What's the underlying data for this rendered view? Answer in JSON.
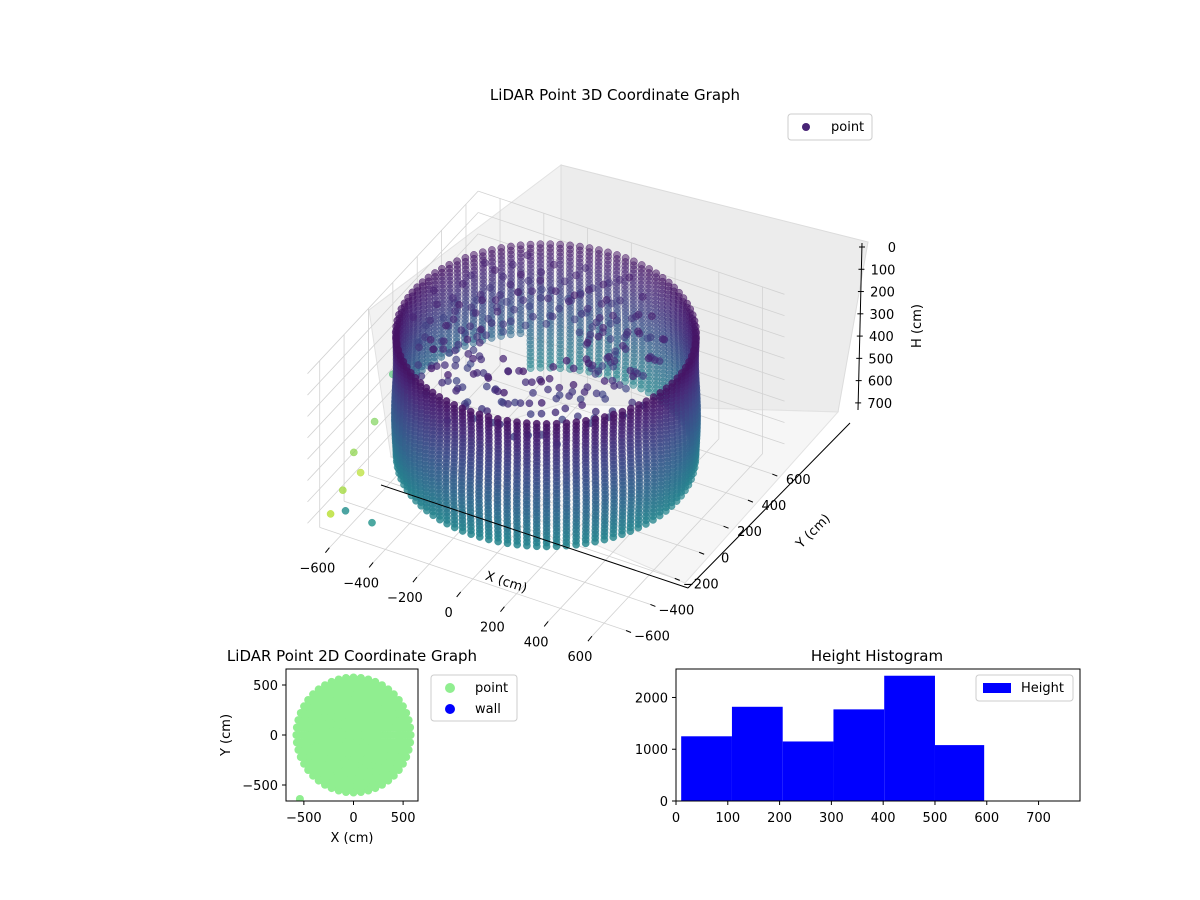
{
  "figure": {
    "background": "#ffffff"
  },
  "chart_data": [
    {
      "type": "scatter",
      "projection": "3d",
      "title": "LiDAR Point 3D Coordinate Graph",
      "xlabel": "X (cm)",
      "ylabel": "Y (cm)",
      "zlabel": "H (cm)",
      "xlim": [
        -700,
        700
      ],
      "ylim": [
        -700,
        700
      ],
      "zlim": [
        0,
        780
      ],
      "z_inverted": true,
      "xticks": [
        -600,
        -400,
        -200,
        0,
        200,
        400,
        600
      ],
      "yticks": [
        -600,
        -400,
        -200,
        0,
        200,
        400,
        600
      ],
      "zticks": [
        0,
        100,
        200,
        300,
        400,
        500,
        600,
        700
      ],
      "colormap": "viridis",
      "grid": true,
      "legend": {
        "entries": [
          "point"
        ],
        "placement": "upper right"
      },
      "series": [
        {
          "name": "point",
          "marker_color": "#482475",
          "description_of_shape": "cylindrical wall of points, radius approx 600 cm, heights 0-600 cm, a few outlier points near x=-650",
          "samples": [
            {
              "x": 600,
              "y": 0,
              "h": 0
            },
            {
              "x": 600,
              "y": 0,
              "h": 600
            },
            {
              "x": 0,
              "y": 600,
              "h": 0
            },
            {
              "x": 0,
              "y": 600,
              "h": 600
            },
            {
              "x": -600,
              "y": 0,
              "h": 0
            },
            {
              "x": -600,
              "y": 0,
              "h": 600
            },
            {
              "x": 0,
              "y": -600,
              "h": 0
            },
            {
              "x": 0,
              "y": -600,
              "h": 600
            },
            {
              "x": -650,
              "y": -500,
              "h": 650
            },
            {
              "x": -680,
              "y": -300,
              "h": 700
            }
          ]
        }
      ]
    },
    {
      "type": "scatter",
      "title": "LiDAR Point 2D Coordinate Graph",
      "xlabel": "X (cm)",
      "ylabel": "Y (cm)",
      "xlim": [
        -680,
        650
      ],
      "ylim": [
        -660,
        660
      ],
      "xticks": [
        -500,
        0,
        500
      ],
      "yticks": [
        -500,
        0,
        500
      ],
      "legend": {
        "entries": [
          "point",
          "wall"
        ],
        "placement": "outside right"
      },
      "series": [
        {
          "name": "point",
          "color": "#90ee90",
          "shape": "filled disk, center (0,0), radius approx 600"
        },
        {
          "name": "wall",
          "color": "#0000ff",
          "points": []
        }
      ]
    },
    {
      "type": "bar",
      "title": "Height Histogram",
      "xlabel": "",
      "ylabel": "",
      "xlim": [
        0,
        780
      ],
      "ylim": [
        0,
        2550
      ],
      "xticks": [
        0,
        100,
        200,
        300,
        400,
        500,
        600,
        700
      ],
      "yticks": [
        0,
        1000,
        2000
      ],
      "legend": {
        "entries": [
          "Height"
        ],
        "placement": "upper right"
      },
      "series": [
        {
          "name": "Height",
          "color": "#0000ff",
          "bins": [
            {
              "start": 10,
              "end": 108,
              "count": 1250
            },
            {
              "start": 108,
              "end": 206,
              "count": 1820
            },
            {
              "start": 206,
              "end": 304,
              "count": 1150
            },
            {
              "start": 304,
              "end": 402,
              "count": 1770
            },
            {
              "start": 402,
              "end": 500,
              "count": 2420
            },
            {
              "start": 500,
              "end": 595,
              "count": 1080
            }
          ]
        }
      ]
    }
  ]
}
